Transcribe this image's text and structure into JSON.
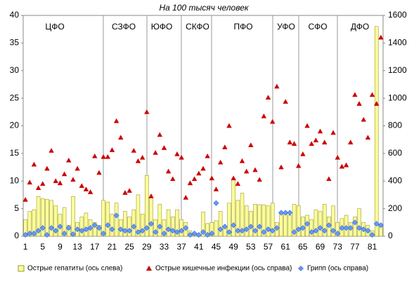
{
  "chart_data": {
    "type": "bar",
    "title": "На 100 тысяч человек",
    "annotations": [
      "ЦФО",
      "СЗФО",
      "ЮФО",
      "СКФО",
      "ПФО",
      "УФО",
      "СФО",
      "ДФО"
    ],
    "categories": [
      "1",
      null,
      null,
      null,
      "5",
      null,
      null,
      null,
      "9",
      null,
      null,
      null,
      "13",
      null,
      null,
      null,
      "17",
      null,
      null,
      null,
      "21",
      null,
      null,
      null,
      "25",
      null,
      null,
      null,
      "29",
      null,
      null,
      null,
      "33",
      null,
      null,
      null,
      "37",
      null,
      null,
      null,
      "41",
      null,
      null,
      null,
      "45",
      null,
      null,
      null,
      "49",
      null,
      null,
      null,
      "53",
      null,
      null,
      null,
      "57",
      null,
      null,
      null,
      "61",
      null,
      null,
      null,
      "65",
      null,
      null,
      null,
      "69",
      null,
      null,
      null,
      "73",
      null,
      null,
      null,
      "77",
      null,
      null,
      null,
      "81",
      null,
      null
    ],
    "series": [
      {
        "name": "Острые гепатиты (ось слева)",
        "type": "bar",
        "color": "#ffff99",
        "values": [
          3,
          4.5,
          4.8,
          7.2,
          6.8,
          6.7,
          6.5,
          5.5,
          4,
          5.2,
          2,
          7.2,
          2.5,
          3.5,
          4.2,
          3,
          2.5,
          2,
          6.5,
          6.2,
          4,
          6,
          3,
          4.5,
          3.5,
          4.8,
          7.5,
          4,
          11,
          7,
          3,
          5.8,
          3,
          4.8,
          3.5,
          4.8,
          3,
          2.5,
          1,
          0.6,
          0.4,
          4.4,
          2.3,
          2.5,
          2.8,
          4.5,
          1.5,
          6,
          10.3,
          6.5,
          7.8,
          5.5,
          4.5,
          5.8,
          5.7,
          5.7,
          5.5,
          6,
          2.5,
          4.2,
          4,
          3.8,
          5.8,
          5.5,
          3.5,
          3.8,
          3,
          4.8,
          4.5,
          5.8,
          3.5,
          5.5,
          2.5,
          3.2,
          3.8,
          2.5,
          3.5,
          5,
          2.5,
          2,
          1,
          38,
          2
        ]
      },
      {
        "name": "Острые кишечные инфекции (ось справа)",
        "type": "scatter",
        "marker": "triangle",
        "color": "#cc0000",
        "axis": "y2",
        "values": [
          265,
          390,
          520,
          350,
          380,
          490,
          620,
          400,
          385,
          450,
          550,
          410,
          490,
          365,
          340,
          320,
          580,
          460,
          575,
          575,
          625,
          835,
          715,
          315,
          330,
          620,
          545,
          570,
          900,
          290,
          605,
          735,
          640,
          470,
          415,
          595,
          570,
          280,
          385,
          415,
          455,
          490,
          580,
          420,
          340,
          535,
          645,
          800,
          420,
          380,
          545,
          470,
          660,
          480,
          410,
          870,
          1005,
          830,
          1085,
          500,
          975,
          680,
          670,
          510,
          595,
          800,
          670,
          695,
          760,
          680,
          415,
          750,
          570,
          505,
          515,
          680,
          1025,
          960,
          845,
          715,
          1025,
          960,
          1440
        ]
      },
      {
        "name": "Грипп (ось справа)",
        "type": "scatter",
        "marker": "diamond",
        "color": "#6699ff",
        "axis": "y2",
        "values": [
          10,
          20,
          20,
          40,
          60,
          10,
          60,
          40,
          70,
          20,
          60,
          15,
          50,
          40,
          50,
          60,
          80,
          60,
          20,
          80,
          50,
          150,
          50,
          40,
          40,
          70,
          30,
          40,
          60,
          90,
          30,
          70,
          20,
          50,
          40,
          30,
          40,
          60,
          10,
          20,
          10,
          30,
          10,
          20,
          240,
          50,
          70,
          30,
          80,
          40,
          40,
          50,
          70,
          40,
          70,
          30,
          50,
          40,
          60,
          170,
          170,
          170,
          30,
          50,
          60,
          90,
          30,
          40,
          60,
          40,
          80,
          40,
          20,
          60,
          60,
          60,
          100,
          60,
          50,
          40,
          10,
          90,
          80
        ]
      }
    ],
    "ylim": [
      0,
      40
    ],
    "yticks": [
      0,
      5,
      10,
      15,
      20,
      25,
      30,
      35,
      40
    ],
    "y2lim": [
      0,
      1600
    ],
    "y2ticks": [
      0,
      200,
      400,
      600,
      800,
      1000,
      1200,
      1400,
      1600
    ],
    "grid": false,
    "legend": "bottom"
  }
}
